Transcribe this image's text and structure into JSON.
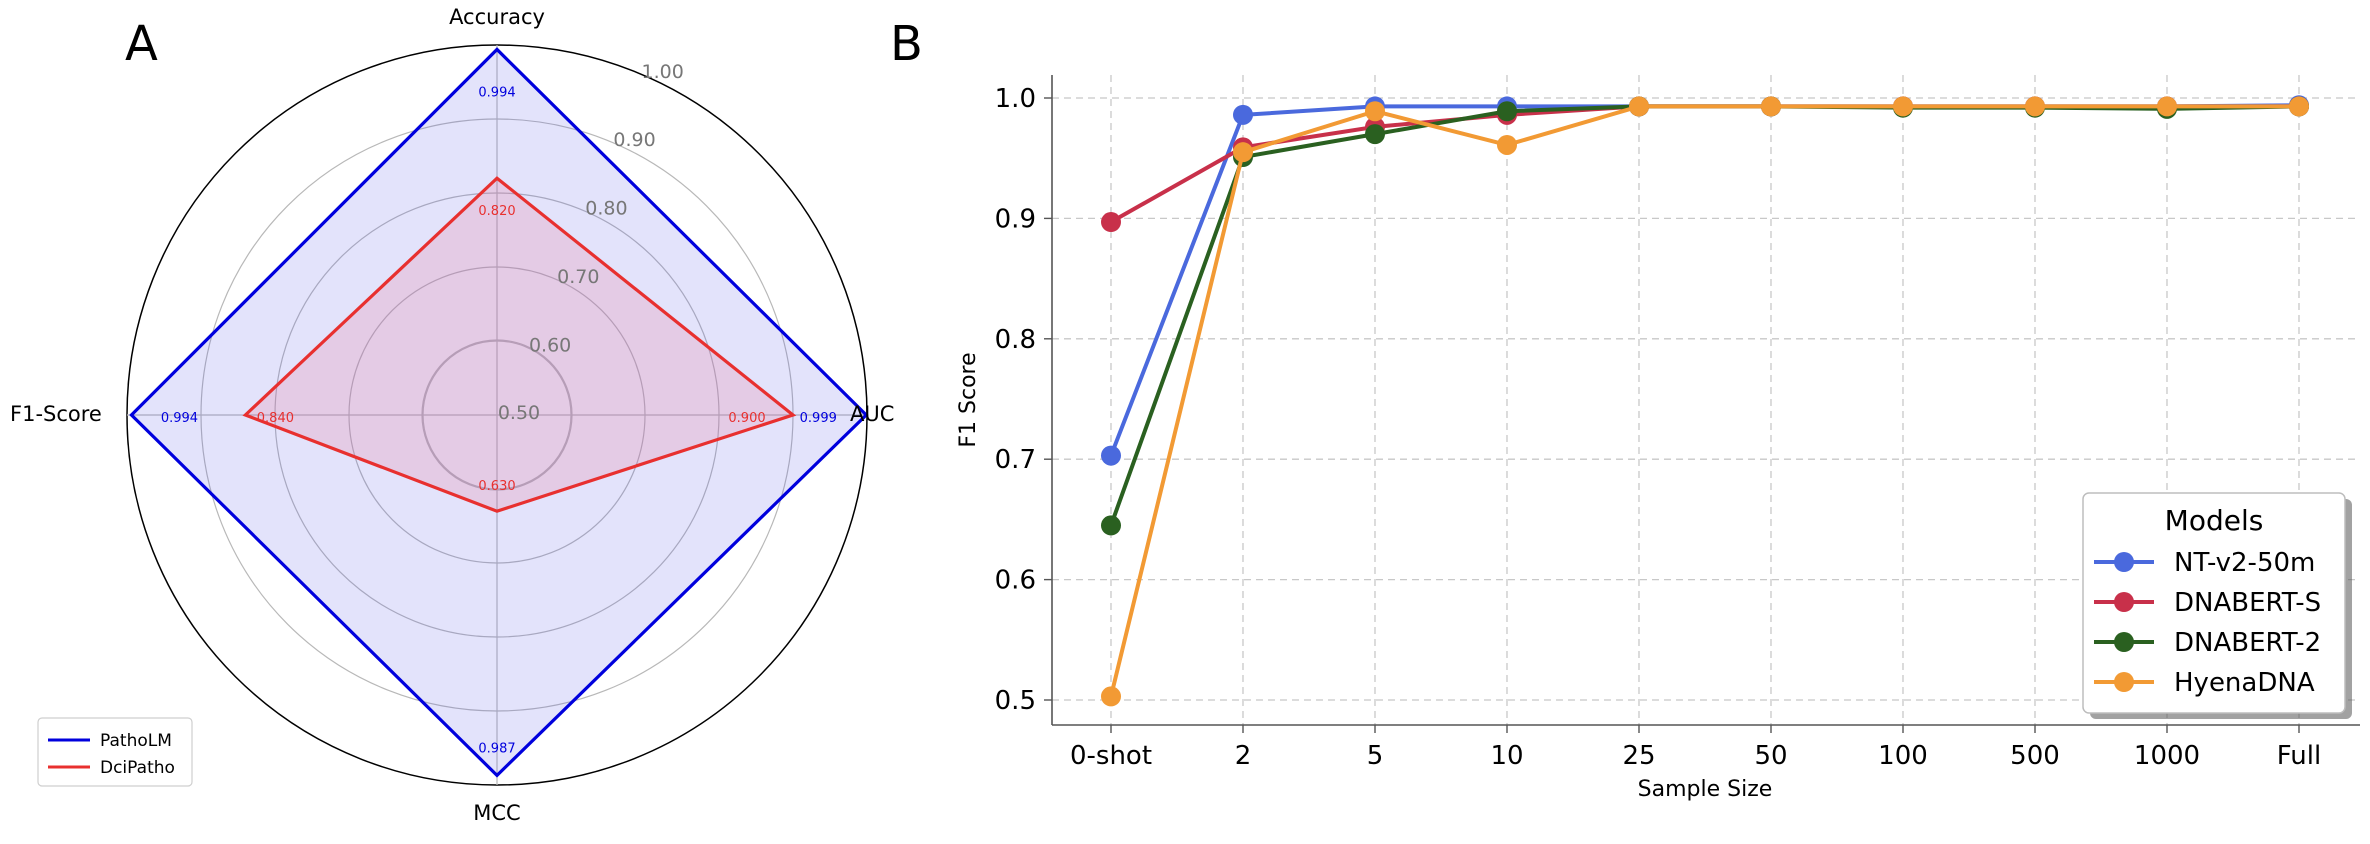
{
  "panels": {
    "a_label": "A",
    "b_label": "B"
  },
  "colors": {
    "patholm": "#0000dd",
    "dcipatho": "#e8302f",
    "nt": "#4a69dd",
    "dnabert_s": "#c8304a",
    "dnabert_2": "#2a6020",
    "hyena": "#f29a34"
  },
  "chart_data": [
    {
      "type": "radar",
      "axes": [
        "Accuracy",
        "AUC",
        "MCC",
        "F1-Score"
      ],
      "rlim": [
        0.5,
        1.0
      ],
      "rticks": [
        0.5,
        0.6,
        0.7,
        0.8,
        0.9,
        1.0
      ],
      "rtick_labels": [
        "0.50",
        "0.60",
        "0.70",
        "0.80",
        "0.90",
        "1.00"
      ],
      "series": [
        {
          "name": "PathoLM",
          "values": [
            0.994,
            0.999,
            0.987,
            0.994
          ],
          "labels": [
            "0.994",
            "0.999",
            "0.987",
            "0.994"
          ]
        },
        {
          "name": "DciPatho",
          "values": [
            0.82,
            0.9,
            0.63,
            0.84
          ],
          "labels": [
            "0.820",
            "0.900",
            "0.630",
            "0.840"
          ]
        }
      ],
      "legend": [
        "PathoLM",
        "DciPatho"
      ],
      "legend_position": "bottom-left"
    },
    {
      "type": "line",
      "categories": [
        "0-shot",
        "2",
        "5",
        "10",
        "25",
        "50",
        "100",
        "500",
        "1000",
        "Full"
      ],
      "xlabel": "Sample Size",
      "ylabel": "F1 Score",
      "ylim": [
        0.48,
        1.02
      ],
      "yticks": [
        "0.5",
        "0.6",
        "0.7",
        "0.8",
        "0.9",
        "1.0"
      ],
      "grid": true,
      "series": [
        {
          "name": "NT-v2-50m",
          "values": [
            0.703,
            0.986,
            0.993,
            0.993,
            0.993,
            0.993,
            0.993,
            0.993,
            0.993,
            0.994
          ]
        },
        {
          "name": "DNABERT-S",
          "values": [
            0.897,
            0.959,
            0.976,
            0.986,
            0.993,
            0.993,
            0.993,
            0.993,
            0.993,
            0.993
          ]
        },
        {
          "name": "DNABERT-2",
          "values": [
            0.645,
            0.951,
            0.97,
            0.989,
            0.993,
            0.993,
            0.992,
            0.992,
            0.991,
            0.993
          ]
        },
        {
          "name": "HyenaDNA",
          "values": [
            0.503,
            0.955,
            0.989,
            0.961,
            0.993,
            0.993,
            0.993,
            0.993,
            0.993,
            0.993
          ]
        }
      ],
      "legend_title": "Models",
      "legend_position": "bottom-right"
    }
  ]
}
